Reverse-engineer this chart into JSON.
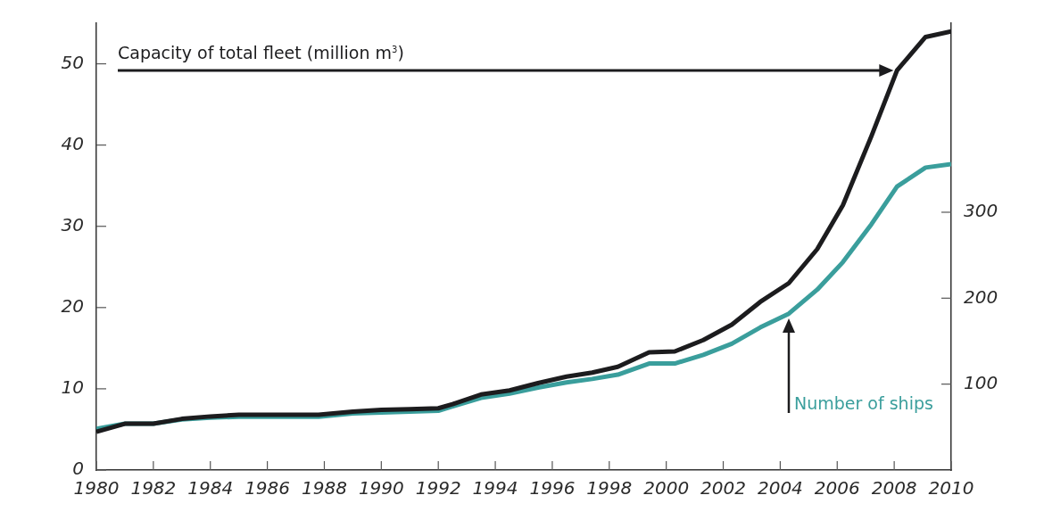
{
  "chart_data": {
    "type": "line",
    "x": [
      1980,
      1981,
      1982,
      1983,
      1984,
      1985,
      1986,
      1987,
      1987.8,
      1989,
      1990,
      1991,
      1992,
      1992.5,
      1993.5,
      1994.5,
      1995.5,
      1996.5,
      1997.4,
      1998.3,
      1999.4,
      2000.3,
      2001.3,
      2002.3,
      2003.3,
      2004.3,
      2005.3,
      2006.2,
      2007.2,
      2008.1,
      2009.1,
      2010
    ],
    "series": [
      {
        "name": "Capacity of total fleet (million m$^{3}$)",
        "color": "#1c1c1e",
        "values": [
          4.7,
          5.7,
          5.7,
          6.3,
          6.6,
          6.8,
          6.8,
          6.8,
          6.8,
          7.2,
          7.4,
          7.5,
          7.6,
          8.1,
          9.3,
          9.8,
          10.7,
          11.5,
          12.0,
          12.7,
          14.5,
          14.6,
          16.0,
          17.9,
          20.7,
          23.0,
          27.2,
          32.6,
          41.1,
          49.2,
          53.3,
          54.0
        ]
      },
      {
        "name": "Number of ships",
        "color": "#3a9e9c",
        "axis": "y2",
        "values": [
          48,
          54,
          54,
          59,
          61,
          62,
          62,
          62,
          62,
          66,
          67,
          68,
          69,
          74,
          84,
          89,
          96,
          102,
          106,
          111,
          124,
          124,
          134,
          147,
          166,
          182,
          210,
          242,
          286,
          330,
          352,
          356
        ]
      }
    ],
    "xlim": [
      1980,
      2010
    ],
    "xticks": [
      1980,
      1982,
      1984,
      1986,
      1988,
      1990,
      1992,
      1994,
      1996,
      1998,
      2000,
      2002,
      2004,
      2006,
      2008,
      2010
    ],
    "ylim": [
      0,
      55
    ],
    "yticks": [
      0,
      10,
      20,
      30,
      40,
      50
    ],
    "y2lim": [
      0,
      520
    ],
    "y2ticks": [
      100,
      200,
      300
    ],
    "grid": false,
    "legend": false,
    "marker": "none",
    "line_style": "solid"
  }
}
